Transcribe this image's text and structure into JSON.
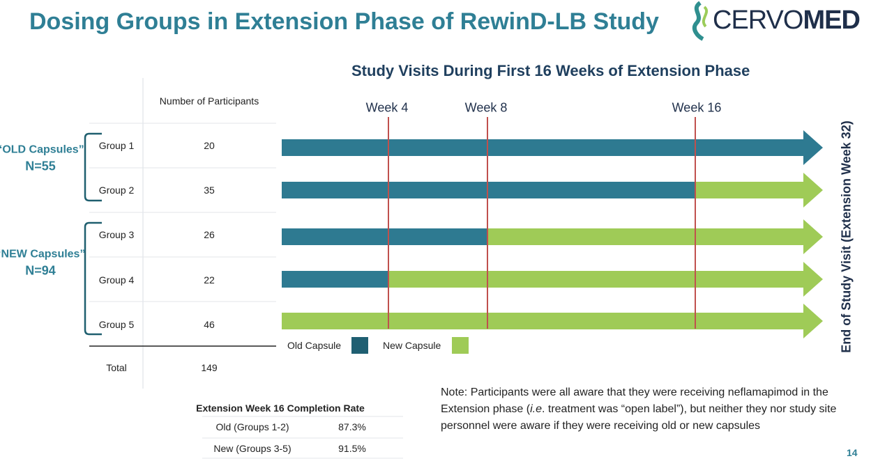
{
  "header": {
    "title": "Dosing Groups in Extension Phase of RewinD-LB Study",
    "logo": [
      "CERVO",
      "MED"
    ]
  },
  "table": {
    "header": "Number of Participants",
    "rows": [
      [
        "Group 1",
        20
      ],
      [
        "Group 2",
        35
      ],
      [
        "Group 3",
        26
      ],
      [
        "Group 4",
        22
      ],
      [
        "Group 5",
        46
      ]
    ],
    "total": [
      "Total",
      149
    ]
  },
  "brackets": [
    {
      "label": "“OLD Capsules”",
      "n": "N=55"
    },
    {
      "label": "“NEW Capsules”",
      "n": "N=94"
    }
  ],
  "timeline": {
    "title": "Study Visits During First 16 Weeks of Extension Phase",
    "weeks": [
      "Week 4",
      "Week 8",
      "Week 16"
    ],
    "end_label": "End of Study Visit (Extension Week 32)",
    "legend": [
      "Old Capsule",
      "New Capsule"
    ]
  },
  "completion": {
    "title": "Extension Week 16 Completion Rate",
    "rows": [
      [
        "Old (Groups 1-2)",
        "87.3%"
      ],
      [
        "New (Groups 3-5)",
        "91.5%"
      ]
    ]
  },
  "note": [
    "Note: Participants were all aware that they were receiving neflamapimod in the Extension phase (",
    "i.e",
    ". treatment was “open label”), but neither they nor study site personnel were aware if they were receiving old or new capsules"
  ],
  "page_number": 14
}
